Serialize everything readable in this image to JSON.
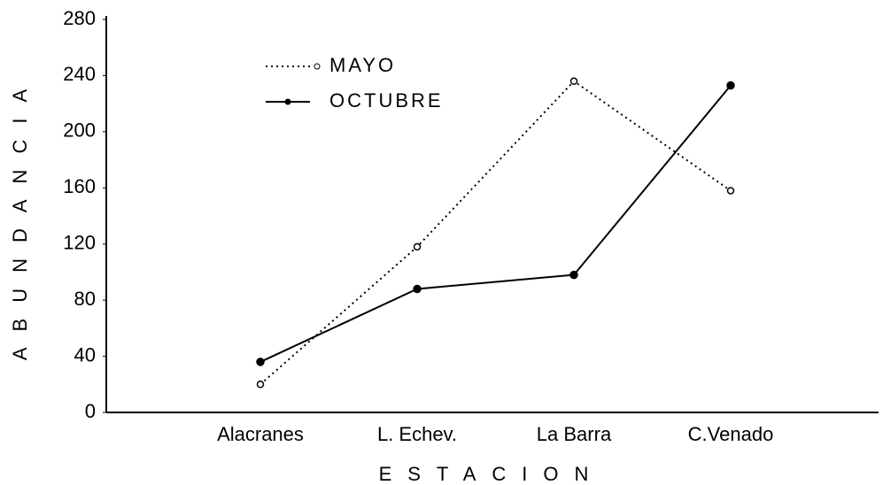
{
  "chart_data": {
    "type": "line",
    "xlabel": "ESTACION",
    "ylabel": "ABUNDANCIA",
    "categories": [
      "Alacranes",
      "L. Echev.",
      "La Barra",
      "C.Venado"
    ],
    "series": [
      {
        "name": "MAYO",
        "color": "#000000",
        "dash": "dotted",
        "values": [
          20,
          118,
          236,
          158
        ]
      },
      {
        "name": "OCTUBRE",
        "color": "#000000",
        "dash": "solid",
        "values": [
          36,
          88,
          98,
          233
        ]
      }
    ],
    "ylim": [
      0,
      280
    ],
    "yticks": [
      0,
      40,
      80,
      120,
      160,
      200,
      240,
      280
    ],
    "grid": false,
    "legend": "upper left"
  }
}
